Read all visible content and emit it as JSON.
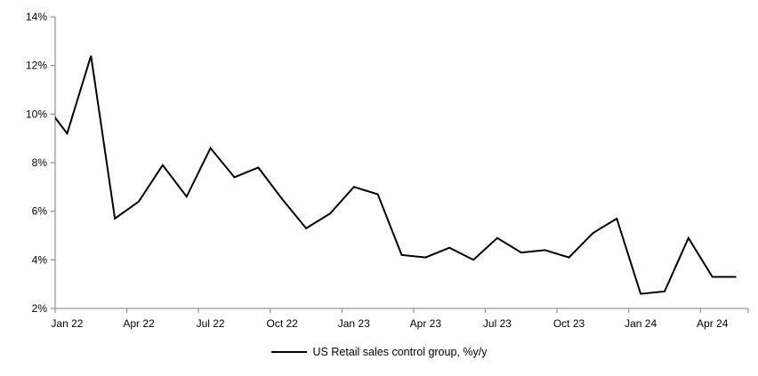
{
  "chart_data": {
    "type": "line",
    "title": "",
    "legend_label": "US Retail sales control group, %y/y",
    "legend_position": "bottom-center",
    "grid": false,
    "x": [
      "Dec 21",
      "Jan 22",
      "Feb 22",
      "Mar 22",
      "Apr 22",
      "May 22",
      "Jun 22",
      "Jul 22",
      "Aug 22",
      "Sep 22",
      "Oct 22",
      "Nov 22",
      "Dec 22",
      "Jan 23",
      "Feb 23",
      "Mar 23",
      "Apr 23",
      "May 23",
      "Jun 23",
      "Jul 23",
      "Aug 23",
      "Sep 23",
      "Oct 23",
      "Nov 23",
      "Dec 23",
      "Jan 24",
      "Feb 24",
      "Mar 24",
      "Apr 24",
      "May 24"
    ],
    "values": [
      10.5,
      9.2,
      12.4,
      5.7,
      6.4,
      7.9,
      6.6,
      8.6,
      7.4,
      7.8,
      6.5,
      5.3,
      5.9,
      7.0,
      6.7,
      4.2,
      4.1,
      4.5,
      4.0,
      4.9,
      4.3,
      4.4,
      4.1,
      5.1,
      5.7,
      2.6,
      2.7,
      4.9,
      3.3,
      3.3
    ],
    "first_point_clipped_at_left_axis": true,
    "ylim": [
      2,
      14
    ],
    "ytick_step": 2,
    "ytick_labels": [
      "2%",
      "4%",
      "6%",
      "8%",
      "10%",
      "12%",
      "14%"
    ],
    "xtick_labels": [
      "Jan 22",
      "Apr 22",
      "Jul 22",
      "Oct 22",
      "Jan 23",
      "Apr 23",
      "Jul 23",
      "Oct 23",
      "Jan 24",
      "Apr 24"
    ],
    "xtick_label_interval_months": 3,
    "line_color": "#000000",
    "axis_color": "#999999",
    "background": "#ffffff"
  }
}
